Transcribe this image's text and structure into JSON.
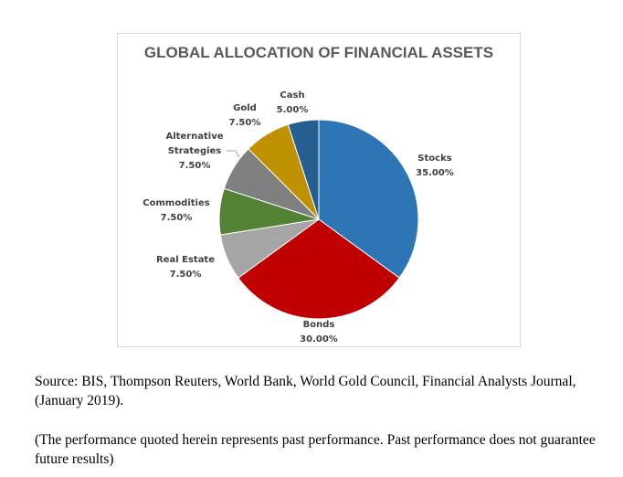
{
  "chart_data": {
    "type": "pie",
    "title": "GLOBAL ALLOCATION OF FINANCIAL ASSETS",
    "categories": [
      "Stocks",
      "Bonds",
      "Real Estate",
      "Commodities",
      "Alternative Strategies",
      "Gold",
      "Cash"
    ],
    "values": [
      35.0,
      30.0,
      7.5,
      7.5,
      7.5,
      7.5,
      5.0
    ],
    "value_labels": [
      "35.00%",
      "30.00%",
      "7.50%",
      "7.50%",
      "7.50%",
      "7.50%",
      "5.00%"
    ],
    "colors": [
      "#2e75b6",
      "#c00000",
      "#a5a5a5",
      "#548235",
      "#7f7f7f",
      "#bf9000",
      "#255e91"
    ],
    "legend": "none",
    "start_angle_deg": 0,
    "direction": "clockwise"
  },
  "captions": {
    "source": "Source: BIS, Thompson Reuters, World Bank, World Gold Council, Financial Analysts Journal, (January 2019).",
    "disclaimer": "(The performance quoted herein represents past performance. Past performance does not guarantee future results)"
  }
}
